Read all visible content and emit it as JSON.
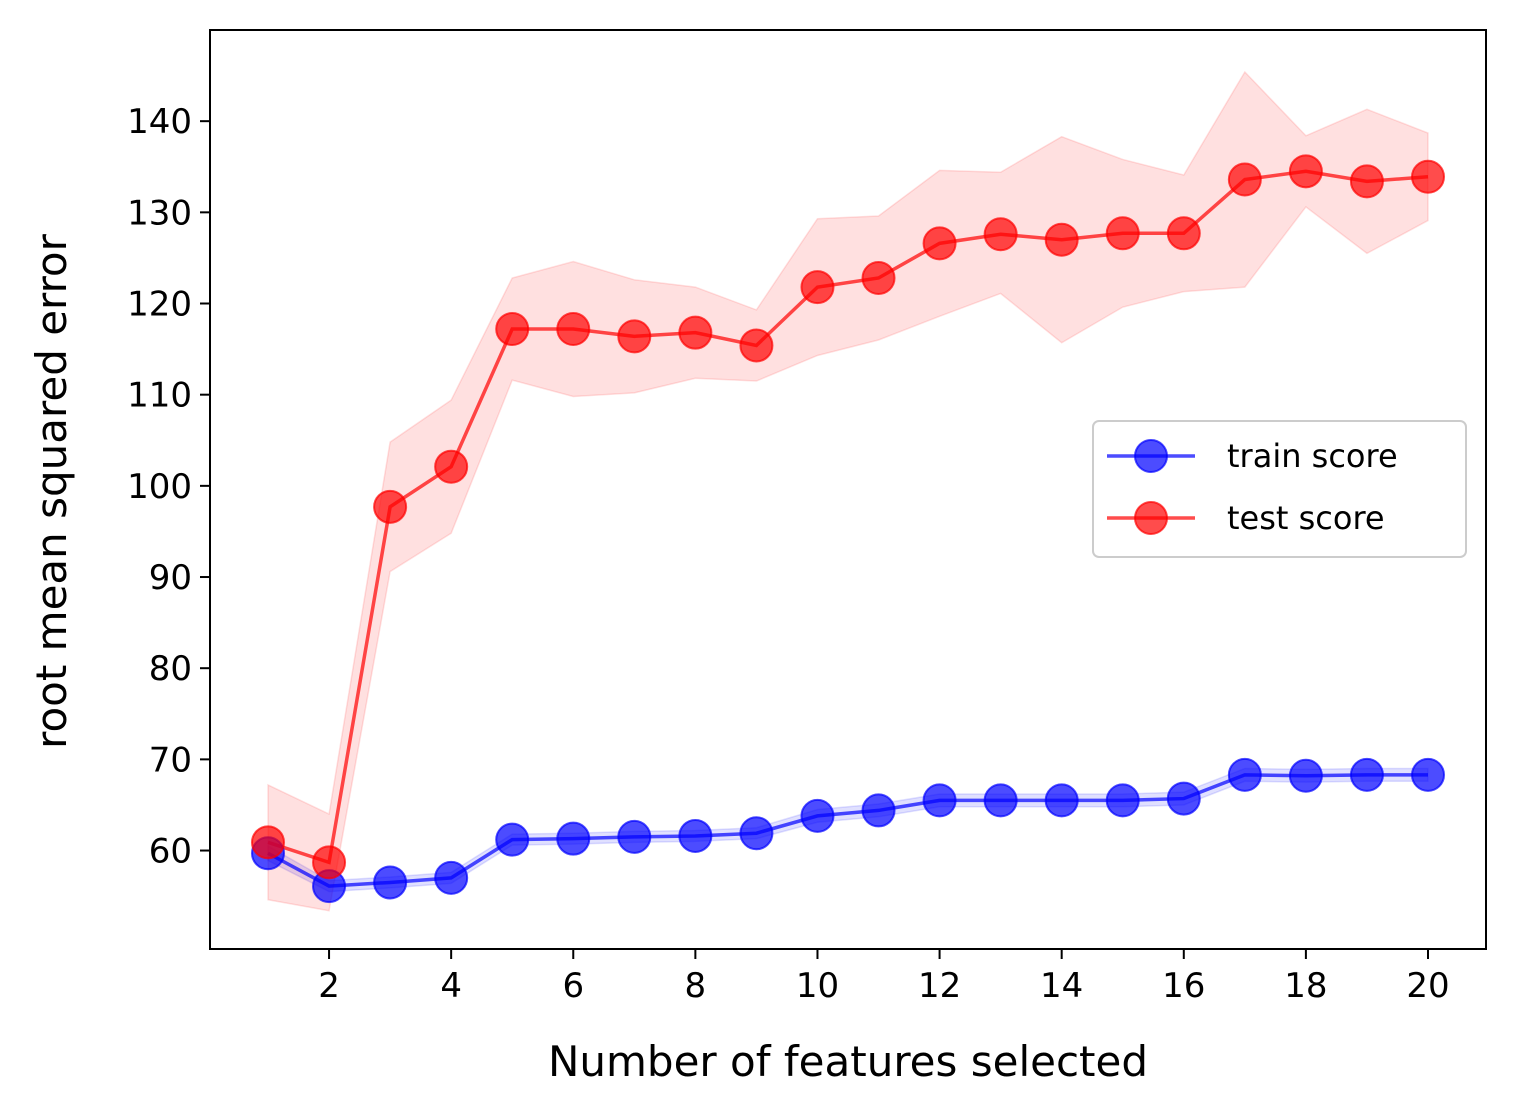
{
  "chart_data": {
    "type": "line",
    "xlabel": "Number of features selected",
    "ylabel": "root mean squared error",
    "xlim": [
      0.05,
      20.95
    ],
    "ylim": [
      49.2,
      150.0
    ],
    "xticks": [
      2,
      4,
      6,
      8,
      10,
      12,
      14,
      16,
      18,
      20
    ],
    "yticks": [
      60,
      70,
      80,
      90,
      100,
      110,
      120,
      130,
      140
    ],
    "grid": false,
    "legend": {
      "position": "center-right"
    },
    "x": [
      1,
      2,
      3,
      4,
      5,
      6,
      7,
      8,
      9,
      10,
      11,
      12,
      13,
      14,
      15,
      16,
      17,
      18,
      19,
      20
    ],
    "series": [
      {
        "name": "train score",
        "color": "#0000ff",
        "values": [
          59.7,
          56.1,
          56.5,
          57.0,
          61.2,
          61.3,
          61.5,
          61.6,
          61.9,
          63.8,
          64.4,
          65.5,
          65.5,
          65.5,
          65.5,
          65.7,
          68.3,
          68.2,
          68.3,
          68.3
        ],
        "lower": [
          58.9,
          55.5,
          55.9,
          56.4,
          60.6,
          60.7,
          60.9,
          61.0,
          61.3,
          63.1,
          63.7,
          64.8,
          64.8,
          64.8,
          64.8,
          65.0,
          67.6,
          67.5,
          67.6,
          67.6
        ],
        "upper": [
          60.5,
          56.7,
          57.1,
          57.6,
          61.8,
          61.9,
          62.1,
          62.2,
          62.5,
          64.5,
          65.1,
          66.2,
          66.2,
          66.2,
          66.2,
          66.4,
          69.0,
          68.9,
          69.0,
          69.0
        ]
      },
      {
        "name": "test score",
        "color": "#ff0000",
        "values": [
          60.9,
          58.7,
          97.7,
          102.1,
          117.2,
          117.2,
          116.4,
          116.8,
          115.4,
          121.8,
          122.8,
          126.6,
          127.6,
          127.0,
          127.7,
          127.7,
          133.6,
          134.5,
          133.4,
          133.9
        ],
        "lower": [
          54.6,
          53.4,
          90.6,
          94.8,
          111.6,
          109.8,
          110.2,
          111.8,
          111.5,
          114.3,
          116.0,
          118.6,
          121.1,
          115.7,
          119.6,
          121.3,
          121.8,
          130.6,
          125.5,
          129.1
        ],
        "upper": [
          67.2,
          64.0,
          104.8,
          109.4,
          122.8,
          124.6,
          122.6,
          121.8,
          119.3,
          129.3,
          129.6,
          134.6,
          134.4,
          138.3,
          135.8,
          134.1,
          145.4,
          138.4,
          141.3,
          138.7
        ]
      }
    ]
  }
}
